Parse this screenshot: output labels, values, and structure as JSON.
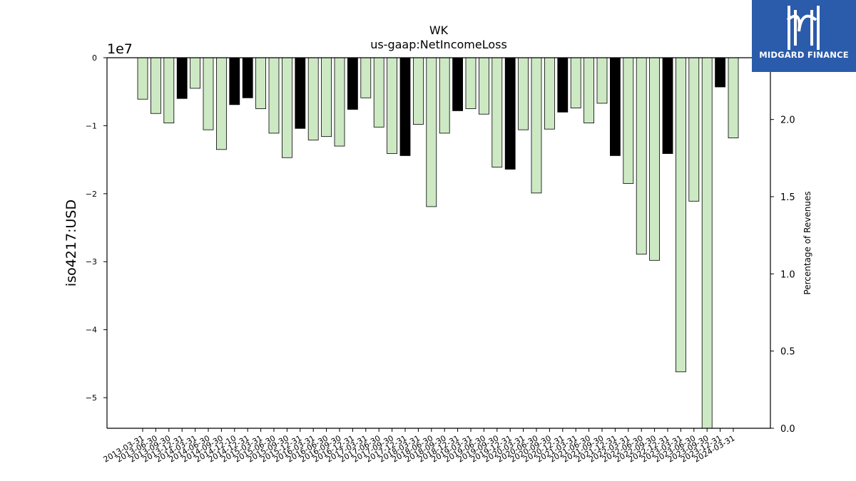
{
  "chart_data": {
    "type": "bar",
    "title": "WK",
    "subtitle": "us-gaap:NetIncomeLoss",
    "ylabel": "iso4217:USD",
    "y_offset_label": "1e7",
    "y2label": "Percentage of Revenues",
    "ylim": [
      -5.45,
      0
    ],
    "y_ticks": [
      "0",
      "−1",
      "−2",
      "−3",
      "−4",
      "−5"
    ],
    "y2lim": [
      0,
      2.4
    ],
    "y2_ticks": [
      "0.0",
      "0.5",
      "1.0",
      "1.5",
      "2.0"
    ],
    "grid": false,
    "categories": [
      "2013-03-31",
      "2013-06-30",
      "2013-09-30",
      "2013-12-31",
      "2014-03-31",
      "2014-06-30",
      "2014-09-30",
      "2014-12-10",
      "2014-12-31",
      "2015-03-31",
      "2015-06-30",
      "2015-09-30",
      "2015-12-31",
      "2016-03-31",
      "2016-06-30",
      "2016-09-30",
      "2016-12-31",
      "2017-03-31",
      "2017-06-30",
      "2017-09-30",
      "2017-12-31",
      "2018-03-31",
      "2018-06-30",
      "2018-09-30",
      "2018-12-31",
      "2019-03-31",
      "2019-06-30",
      "2019-09-30",
      "2019-12-31",
      "2020-03-31",
      "2020-06-30",
      "2020-09-30",
      "2020-12-31",
      "2021-03-31",
      "2021-06-30",
      "2021-09-30",
      "2021-12-31",
      "2022-03-31",
      "2022-06-30",
      "2022-09-30",
      "2022-12-31",
      "2023-03-31",
      "2023-06-30",
      "2023-09-30",
      "2023-12-31",
      "2024-03-31"
    ],
    "values": [
      -0.61,
      -0.82,
      -0.96,
      -0.6,
      -0.45,
      -1.06,
      -1.35,
      -0.69,
      -0.59,
      -0.75,
      -1.11,
      -1.47,
      -1.04,
      -1.21,
      -1.16,
      -1.3,
      -0.76,
      -0.59,
      -1.02,
      -1.41,
      -1.44,
      -0.98,
      -2.19,
      -1.11,
      -0.78,
      -0.75,
      -0.83,
      -1.61,
      -1.64,
      -1.06,
      -1.99,
      -1.05,
      -0.8,
      -0.74,
      -0.96,
      -0.67,
      -1.44,
      -1.85,
      -2.89,
      -2.98,
      -1.41,
      -4.62,
      -2.11,
      -5.45,
      -0.43,
      -1.18
    ],
    "highlight": [
      false,
      false,
      false,
      true,
      false,
      false,
      false,
      true,
      true,
      false,
      false,
      false,
      true,
      false,
      false,
      false,
      true,
      false,
      false,
      false,
      true,
      false,
      false,
      false,
      true,
      false,
      false,
      false,
      true,
      false,
      false,
      false,
      true,
      false,
      false,
      false,
      true,
      false,
      false,
      false,
      true,
      false,
      false,
      false,
      true,
      false
    ],
    "colors": {
      "bar": "#cde9c4",
      "highlight": "#000000",
      "edge": "#000000"
    }
  },
  "logo": {
    "name": "MIDGARD FINANCE"
  }
}
